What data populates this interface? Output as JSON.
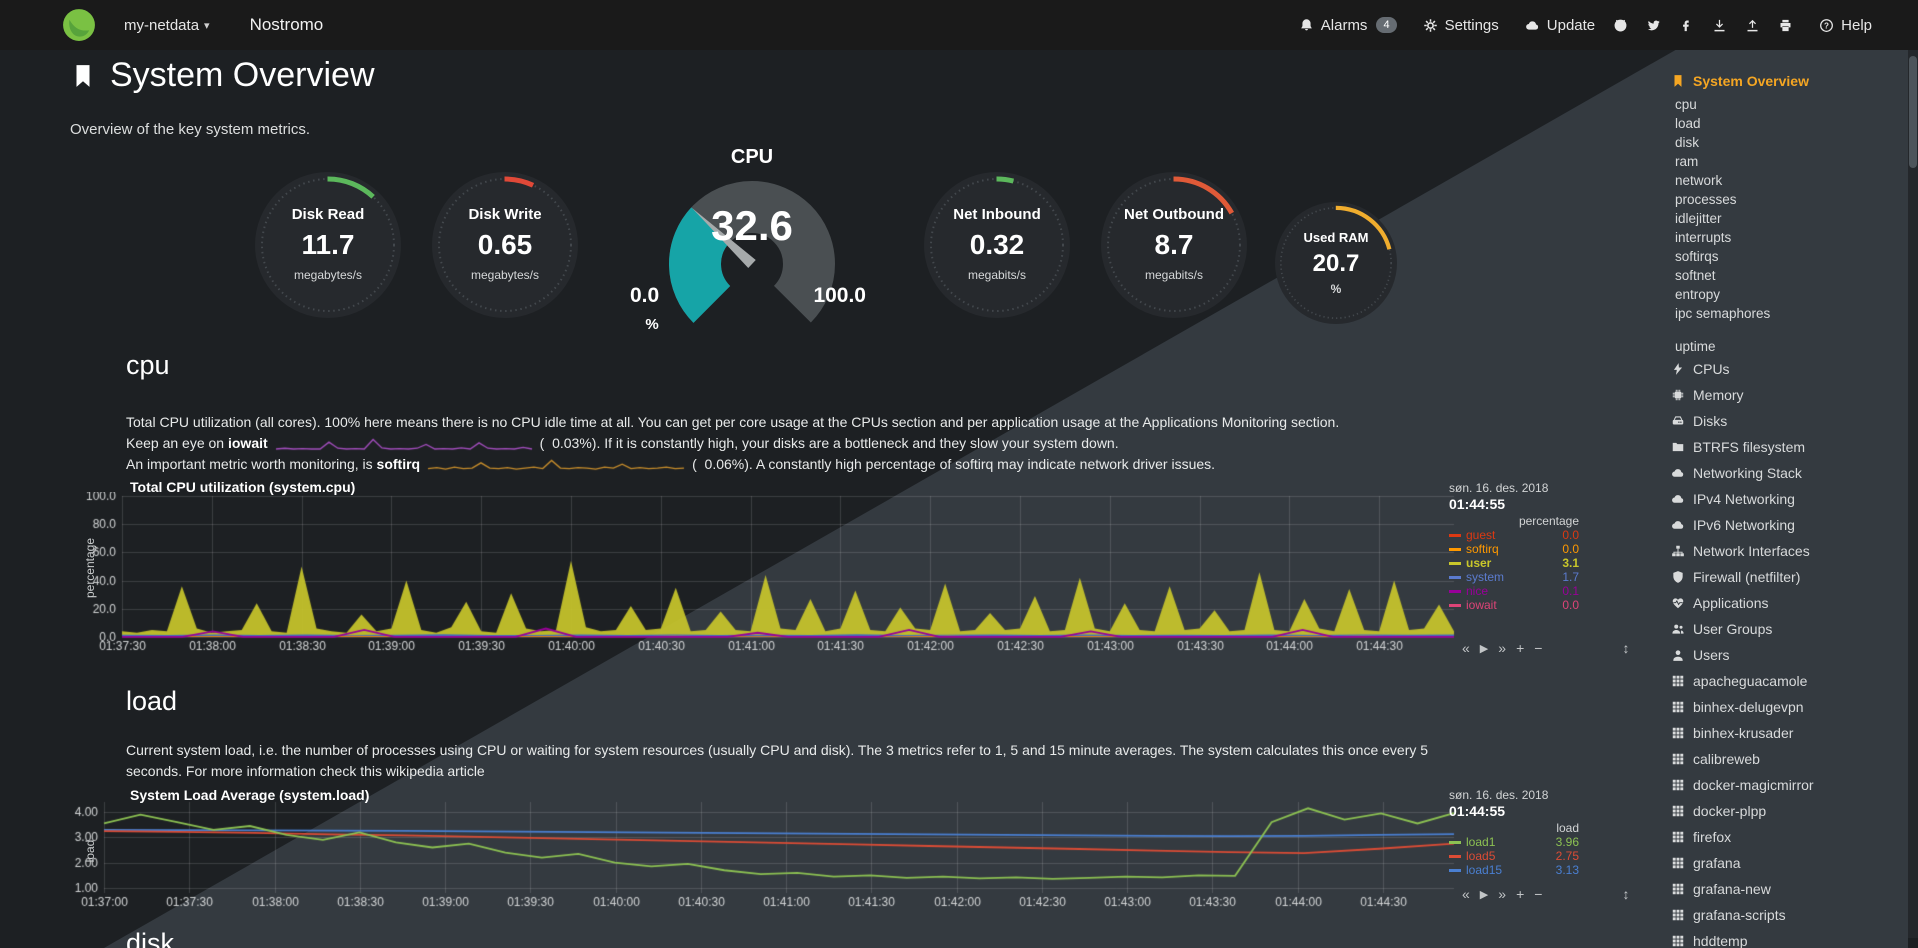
{
  "colors": {
    "accent_orange": "#F5A623",
    "netdata_green": "#7AC143",
    "background_dark": "#1D2023",
    "background_light": "#343A40"
  },
  "navbar": {
    "hostname": "my-netdata",
    "caret": "▾",
    "brand": "Nostromo",
    "alarms": "Alarms",
    "alarms_badge": "4",
    "settings": "Settings",
    "update": "Update",
    "help": "Help"
  },
  "page": {
    "title": "System Overview",
    "subtitle": "Overview of the key system metrics."
  },
  "gauges": {
    "disk_read": {
      "title": "Disk Read",
      "value": "11.7",
      "units": "megabytes/s",
      "pct": 12,
      "color": "#5CB85C"
    },
    "disk_write": {
      "title": "Disk Write",
      "value": "0.65",
      "units": "megabytes/s",
      "pct": 7,
      "color": "#E04938"
    },
    "net_inbound": {
      "title": "Net Inbound",
      "value": "0.32",
      "units": "megabits/s",
      "pct": 4,
      "color": "#5CB85C"
    },
    "net_outbound": {
      "title": "Net Outbound",
      "value": "8.7",
      "units": "megabits/s",
      "pct": 17,
      "color": "#E05A38"
    },
    "used_ram": {
      "title": "Used RAM",
      "value": "20.7",
      "units": "%",
      "pct": 21,
      "color": "#F0AD2E"
    },
    "cpu": {
      "title": "CPU",
      "value": "32.6",
      "min": "0.0",
      "max": "100.0",
      "units": "%",
      "pct": 32.6,
      "fill": "#16A4A7",
      "body": "#4A4F52",
      "needle": "#A6AaAb"
    }
  },
  "sections": {
    "cpu": {
      "heading": "cpu",
      "para1": "Total CPU utilization (all cores). 100% here means there is no CPU idle time at all. You can get per core usage at the CPUs section and per application usage at the Applications Monitoring section.",
      "line2_pre": "Keep an eye on ",
      "line2_keyword": "iowait",
      "line2_value": "(  0.03%).",
      "line2_post": " If it is constantly high, your disks are a bottleneck and they slow your system down.",
      "line3_pre": "An important metric worth monitoring, is ",
      "line3_keyword": "softirq",
      "line3_value": "(  0.06%).",
      "line3_post": " A constantly high percentage of softirq may indicate network driver issues."
    },
    "load": {
      "heading": "load",
      "para_pre": "Current system load, i.e. the number of processes using CPU or waiting for system resources (usually CPU and disk). The 3 metrics refer to 1, 5 and 15 minute averages. The system calculates this once every 5 seconds. For more information check ",
      "para_link": "this wikipedia article"
    },
    "disk": {
      "heading": "disk"
    }
  },
  "sparks": {
    "iowait": {
      "color": "#A34DBE",
      "values": [
        0,
        0.2,
        0,
        0.1,
        0,
        0,
        1.8,
        0.2,
        0,
        0.1,
        0,
        2.5,
        0.3,
        0,
        0.1,
        0,
        0.2,
        1.2,
        0,
        0.1,
        0,
        0.3,
        0,
        1.6,
        0.2,
        0,
        0.1,
        0,
        0.4,
        0
      ]
    },
    "softirq": {
      "color": "#C98E2B",
      "values": [
        0.3,
        0.5,
        0.2,
        0.6,
        0.3,
        0.4,
        1.5,
        0.4,
        0.3,
        0.5,
        0.2,
        0.4,
        0.6,
        0.3,
        2.0,
        0.4,
        0.3,
        0.5,
        0.4,
        0.2,
        0.6,
        0.4,
        1.2,
        0.3,
        0.5,
        0.3,
        0.4,
        0.6,
        0.3,
        0.4
      ]
    }
  },
  "charts": {
    "cpu": {
      "title": "Total CPU utilization (system.cpu)",
      "date": "søn. 16. des. 2018",
      "time": "01:44:55",
      "units_label": "percentage",
      "ylabel": "percentage",
      "ymin": 0,
      "ymax": 100,
      "grid_values": [
        0,
        20,
        40,
        60,
        80,
        100
      ],
      "grid_labels": [
        "0.0",
        "20.0",
        "40.0",
        "60.0",
        "80.0",
        "100.0"
      ],
      "x_ticks": [
        "01:37:30",
        "01:38:00",
        "01:38:30",
        "01:39:00",
        "01:39:30",
        "01:40:00",
        "01:40:30",
        "01:41:00",
        "01:41:30",
        "01:42:00",
        "01:42:30",
        "01:43:00",
        "01:43:30",
        "01:44:00",
        "01:44:30"
      ],
      "x_total_seconds": 445,
      "x_step_seconds": 30,
      "padL": 62,
      "legend": [
        {
          "name": "guest",
          "value": "0.0",
          "color": "#DC3912"
        },
        {
          "name": "softirq",
          "value": "0.0",
          "color": "#FF9900"
        },
        {
          "name": "user",
          "value": "3.1",
          "color": "#C9C72B",
          "bold": true
        },
        {
          "name": "system",
          "value": "1.7",
          "color": "#5B7BCE"
        },
        {
          "name": "nice",
          "value": "0.1",
          "color": "#990099"
        },
        {
          "name": "iowait",
          "value": "0.0",
          "color": "#DD4477"
        }
      ],
      "series": [
        {
          "name": "user",
          "color": "#C9C72B",
          "type": "area",
          "values": [
            4,
            3,
            5,
            4,
            36,
            6,
            3,
            4,
            5,
            24,
            4,
            3,
            50,
            6,
            4,
            3,
            16,
            4,
            6,
            40,
            5,
            3,
            7,
            25,
            4,
            3,
            31,
            6,
            4,
            5,
            54,
            7,
            4,
            5,
            22,
            5,
            6,
            35,
            4,
            5,
            18,
            5,
            4,
            44,
            6,
            5,
            27,
            4,
            6,
            33,
            5,
            4,
            21,
            6,
            5,
            38,
            4,
            5,
            17,
            5,
            6,
            29,
            4,
            5,
            42,
            6,
            4,
            24,
            5,
            4,
            36,
            5,
            6,
            19,
            4,
            5,
            46,
            5,
            4,
            27,
            6,
            4,
            34,
            5,
            4,
            40,
            5,
            6,
            23,
            4
          ]
        },
        {
          "name": "system",
          "color": "#3366CC",
          "type": "area",
          "values": [
            1.6,
            1.4,
            1.8,
            1.5,
            1.7,
            1.4,
            1.6,
            1.9,
            1.5,
            1.4,
            1.7,
            1.5,
            1.8,
            1.4,
            1.6,
            1.5,
            1.9,
            1.4,
            1.6,
            1.7,
            1.4,
            1.8,
            1.5,
            1.6,
            1.4,
            1.7,
            1.5,
            1.8,
            1.6,
            1.7
          ]
        },
        {
          "name": "softirq",
          "color": "#FF9900",
          "type": "area",
          "values": [
            0.6,
            0.5,
            0.7,
            0.5,
            0.6,
            0.8,
            0.5,
            0.6,
            0.5,
            0.7,
            0.6,
            0.5,
            0.8,
            0.6,
            0.5,
            0.7,
            0.5,
            0.6,
            0.8,
            0.5,
            0.6,
            0.7,
            0.5,
            0.6,
            0.5,
            0.7,
            0.6,
            0.8,
            0.5,
            0.6
          ]
        },
        {
          "name": "guest",
          "color": "#DC3912",
          "type": "area",
          "values": [
            0.25,
            0.25,
            0.25,
            0.25,
            0.25,
            0.25,
            0.25,
            0.25,
            0.25,
            0.25
          ]
        },
        {
          "name": "nice",
          "color": "#990099",
          "type": "line",
          "values": [
            0.1,
            0.1,
            0.1,
            4,
            0.1,
            0.1,
            0.1,
            0.1,
            5,
            0.1,
            0.1,
            0.1,
            0.1,
            0.1,
            6,
            0.1,
            0.1,
            0.1,
            0.1,
            0.1,
            0.1,
            3,
            0.1,
            0.1,
            0.1,
            0.1,
            5,
            0.1,
            0.1,
            0.1,
            0.1,
            0.1,
            4,
            0.1,
            0.1,
            0.1,
            0.1,
            0.1,
            0.1,
            5,
            0.1,
            0.1,
            0.1,
            0.1,
            0.1
          ]
        }
      ]
    },
    "load": {
      "title": "System Load Average (system.load)",
      "date": "søn. 16. des. 2018",
      "time": "01:44:55",
      "units_label": "load",
      "ylabel": "load",
      "ymin": 0.8,
      "ymax": 4.4,
      "grid_values": [
        1,
        2,
        3,
        4
      ],
      "grid_labels": [
        "1.00",
        "2.00",
        "3.00",
        "4.00"
      ],
      "x_ticks": [
        "01:37:00",
        "01:37:30",
        "01:38:00",
        "01:38:30",
        "01:39:00",
        "01:39:30",
        "01:40:00",
        "01:40:30",
        "01:41:00",
        "01:41:30",
        "01:42:00",
        "01:42:30",
        "01:43:00",
        "01:43:30",
        "01:44:00",
        "01:44:30"
      ],
      "x_total_seconds": 475,
      "x_step_seconds": 30,
      "padL": 44,
      "legend": [
        {
          "name": "load1",
          "value": "3.96",
          "color": "#8CC152"
        },
        {
          "name": "load5",
          "value": "2.75",
          "color": "#DC4C35"
        },
        {
          "name": "load15",
          "value": "3.13",
          "color": "#4A7FD1"
        }
      ],
      "series": [
        {
          "name": "load15",
          "color": "#4A7FD1",
          "type": "line",
          "values": [
            3.3,
            3.29,
            3.28,
            3.27,
            3.26,
            3.24,
            3.22,
            3.2,
            3.18,
            3.16,
            3.14,
            3.12,
            3.1,
            3.08,
            3.06,
            3.05,
            3.06,
            3.1,
            3.13
          ]
        },
        {
          "name": "load5",
          "color": "#DC4C35",
          "type": "line",
          "values": [
            3.25,
            3.22,
            3.18,
            3.12,
            3.08,
            3.02,
            2.96,
            2.9,
            2.84,
            2.78,
            2.72,
            2.66,
            2.6,
            2.54,
            2.48,
            2.42,
            2.38,
            2.55,
            2.75
          ]
        },
        {
          "name": "load1",
          "color": "#8CC152",
          "type": "line",
          "values": [
            3.55,
            3.9,
            3.6,
            3.3,
            3.45,
            3.1,
            2.9,
            3.2,
            2.8,
            2.6,
            2.75,
            2.4,
            2.2,
            2.35,
            2.0,
            1.85,
            1.95,
            1.7,
            1.55,
            1.6,
            1.45,
            1.5,
            1.4,
            1.45,
            1.38,
            1.42,
            1.36,
            1.4,
            1.45,
            1.42,
            1.5,
            1.48,
            3.6,
            4.15,
            3.7,
            3.95,
            3.55,
            3.96
          ]
        }
      ]
    }
  },
  "toolbar": {
    "backward": "«",
    "play": "▶",
    "forward": "»",
    "zoom_in": "+",
    "zoom_out": "−",
    "resize": "↕"
  },
  "sidebar": {
    "items": [
      {
        "label": "System Overview",
        "icon": "bookmark-icon",
        "active": true
      },
      {
        "label": "cpu",
        "sub": true
      },
      {
        "label": "load",
        "sub": true
      },
      {
        "label": "disk",
        "sub": true
      },
      {
        "label": "ram",
        "sub": true
      },
      {
        "label": "network",
        "sub": true
      },
      {
        "label": "processes",
        "sub": true
      },
      {
        "label": "idlejitter",
        "sub": true
      },
      {
        "label": "interrupts",
        "sub": true
      },
      {
        "label": "softirqs",
        "sub": true
      },
      {
        "label": "softnet",
        "sub": true
      },
      {
        "label": "entropy",
        "sub": true
      },
      {
        "label": "ipc semaphores",
        "sub": true
      },
      {
        "label": "uptime",
        "sub": true
      },
      {
        "label": "CPUs",
        "icon": "bolt-icon"
      },
      {
        "label": "Memory",
        "icon": "microchip-icon"
      },
      {
        "label": "Disks",
        "icon": "hdd-icon"
      },
      {
        "label": "BTRFS filesystem",
        "icon": "folder-icon"
      },
      {
        "label": "Networking Stack",
        "icon": "cloud-icon"
      },
      {
        "label": "IPv4 Networking",
        "icon": "cloud-icon"
      },
      {
        "label": "IPv6 Networking",
        "icon": "cloud-icon"
      },
      {
        "label": "Network Interfaces",
        "icon": "sitemap-icon"
      },
      {
        "label": "Firewall (netfilter)",
        "icon": "shield-icon"
      },
      {
        "label": "Applications",
        "icon": "heartbeat-icon"
      },
      {
        "label": "User Groups",
        "icon": "users-icon"
      },
      {
        "label": "Users",
        "icon": "user-icon"
      },
      {
        "label": "apacheguacamole",
        "icon": "grid-icon"
      },
      {
        "label": "binhex-delugevpn",
        "icon": "grid-icon"
      },
      {
        "label": "binhex-krusader",
        "icon": "grid-icon"
      },
      {
        "label": "calibreweb",
        "icon": "grid-icon"
      },
      {
        "label": "docker-magicmirror",
        "icon": "grid-icon"
      },
      {
        "label": "docker-plpp",
        "icon": "grid-icon"
      },
      {
        "label": "firefox",
        "icon": "grid-icon"
      },
      {
        "label": "grafana",
        "icon": "grid-icon"
      },
      {
        "label": "grafana-new",
        "icon": "grid-icon"
      },
      {
        "label": "grafana-scripts",
        "icon": "grid-icon"
      },
      {
        "label": "hddtemp",
        "icon": "grid-icon"
      }
    ]
  }
}
